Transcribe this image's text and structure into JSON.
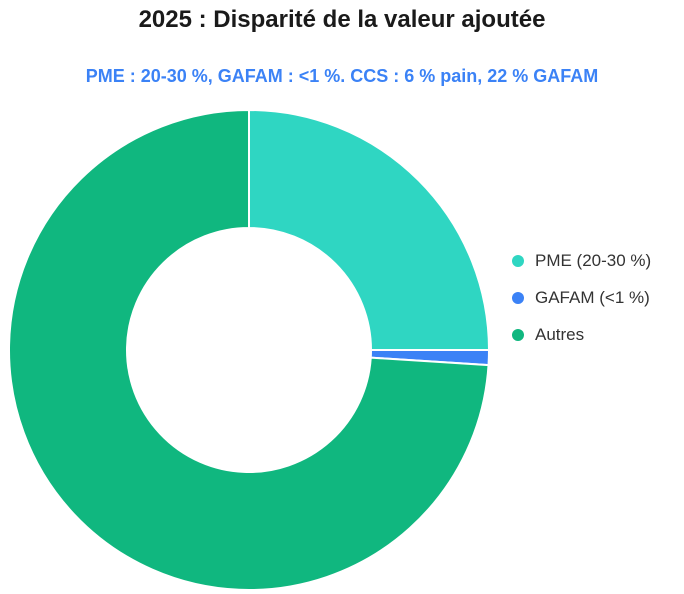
{
  "chart_data": {
    "type": "pie",
    "title": "2025 : Disparité de la valeur ajoutée",
    "subtitle": "PME : 20-30 %, GAFAM : <1 %. CCS : 6 % pain, 22 % GAFAM",
    "labels": [
      "PME (20-30 %)",
      "GAFAM (<1 %)",
      "Autres"
    ],
    "values": [
      25,
      1,
      74
    ],
    "colors": [
      "#2fd6c2",
      "#3b82f6",
      "#10b77f"
    ],
    "donut": true,
    "legend_position": "right"
  }
}
